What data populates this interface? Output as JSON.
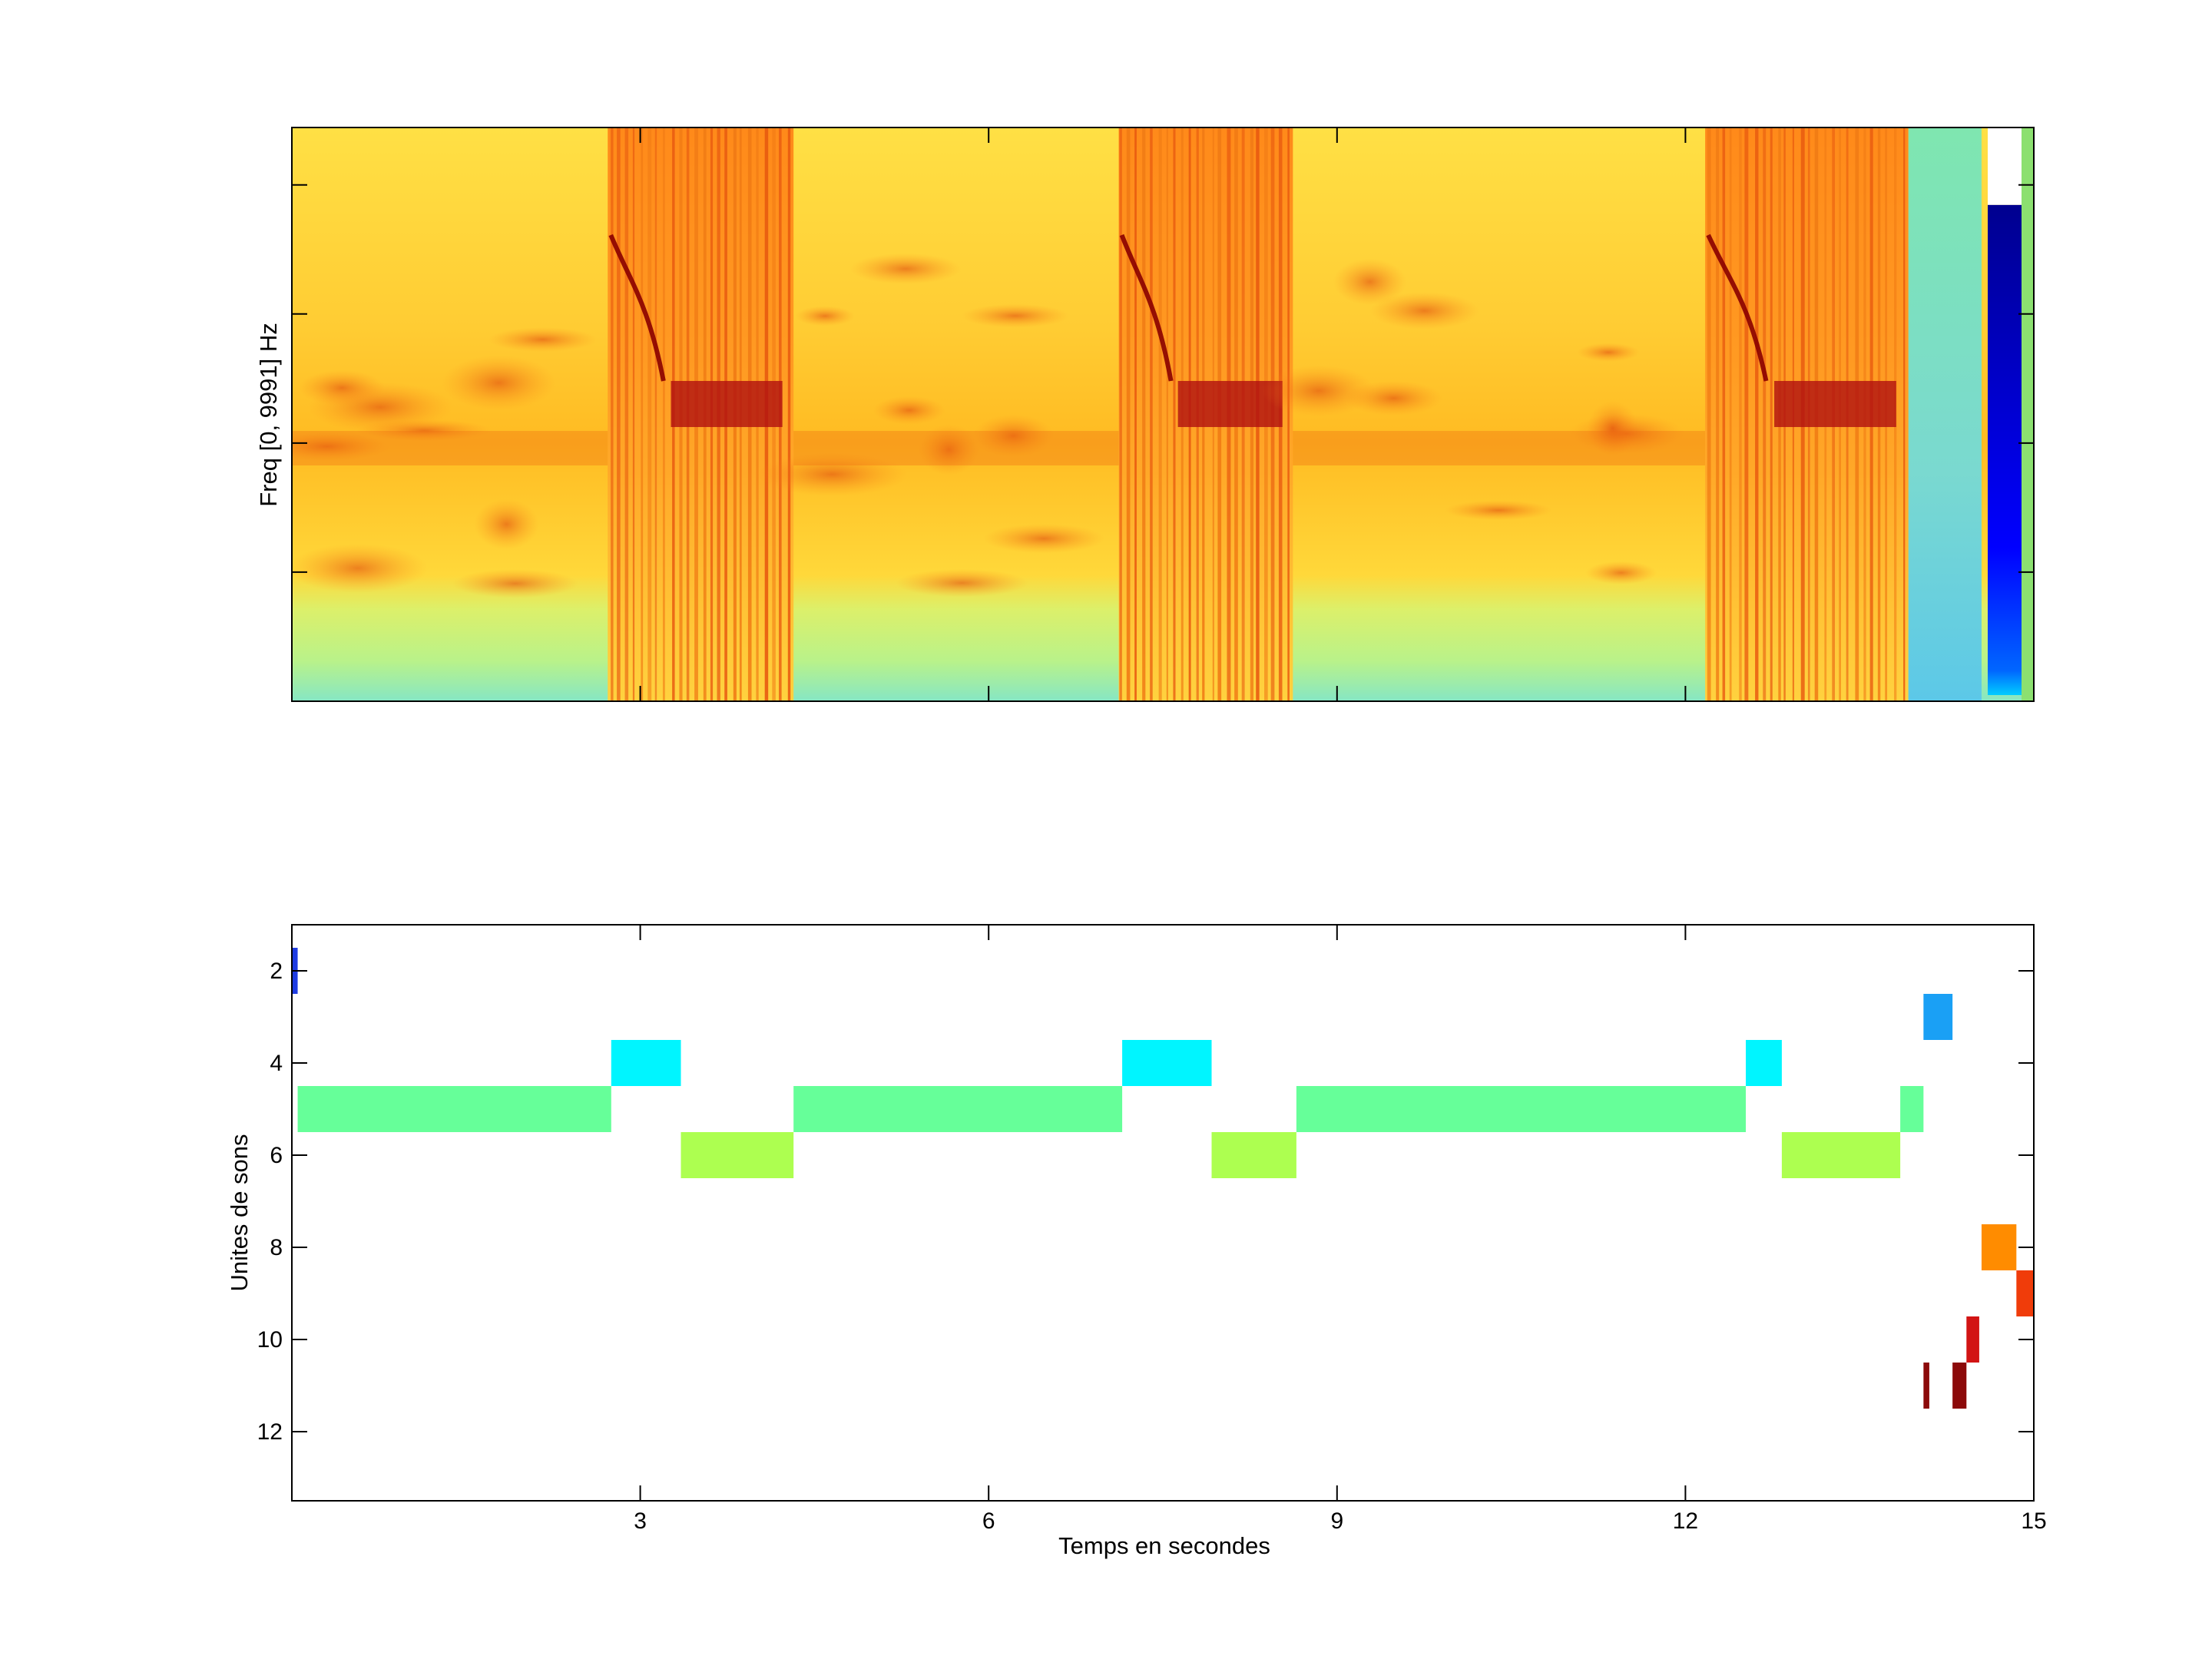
{
  "chart_data": [
    {
      "type": "heatmap",
      "ylabel": "Freq [0, 9991] Hz",
      "xlim": [
        0,
        15
      ],
      "colorscale": "jet",
      "sections": [
        {
          "t0": 0.0,
          "t1": 2.72,
          "kind": "quiet"
        },
        {
          "t0": 2.72,
          "t1": 4.32,
          "kind": "song"
        },
        {
          "t0": 4.32,
          "t1": 7.12,
          "kind": "quiet"
        },
        {
          "t0": 7.12,
          "t1": 8.62,
          "kind": "song"
        },
        {
          "t0": 8.62,
          "t1": 12.17,
          "kind": "quiet"
        },
        {
          "t0": 12.17,
          "t1": 13.92,
          "kind": "song"
        },
        {
          "t0": 13.92,
          "t1": 14.55,
          "kind": "fade"
        }
      ],
      "colorbar_fraction": 0.82
    },
    {
      "type": "heatmap",
      "xlabel": "Temps en secondes",
      "ylabel": "Unites de sons",
      "xlim": [
        0,
        15
      ],
      "ylim": [
        1,
        13.5
      ],
      "xticks": [
        3,
        6,
        9,
        12,
        15
      ],
      "yticks": [
        2,
        4,
        6,
        8,
        10,
        12
      ],
      "segments": [
        {
          "unit": 2,
          "start": 0.0,
          "end": 0.05,
          "color": "#1f3de3"
        },
        {
          "unit": 3,
          "start": 14.05,
          "end": 14.3,
          "color": "#1aa0f5"
        },
        {
          "unit": 4,
          "start": 2.75,
          "end": 3.35,
          "color": "#00f5ff"
        },
        {
          "unit": 4,
          "start": 7.15,
          "end": 7.92,
          "color": "#00f5ff"
        },
        {
          "unit": 4,
          "start": 12.52,
          "end": 12.83,
          "color": "#00f5ff"
        },
        {
          "unit": 5,
          "start": 0.05,
          "end": 2.75,
          "color": "#66ff99"
        },
        {
          "unit": 5,
          "start": 4.32,
          "end": 7.15,
          "color": "#66ff99"
        },
        {
          "unit": 5,
          "start": 8.65,
          "end": 12.52,
          "color": "#66ff99"
        },
        {
          "unit": 5,
          "start": 13.85,
          "end": 14.05,
          "color": "#66ff99"
        },
        {
          "unit": 6,
          "start": 3.35,
          "end": 4.32,
          "color": "#adff50"
        },
        {
          "unit": 6,
          "start": 7.92,
          "end": 8.65,
          "color": "#adff50"
        },
        {
          "unit": 6,
          "start": 12.83,
          "end": 13.85,
          "color": "#adff50"
        },
        {
          "unit": 8,
          "start": 14.55,
          "end": 14.85,
          "color": "#ff8c00"
        },
        {
          "unit": 9,
          "start": 14.85,
          "end": 15.0,
          "color": "#f03c0a"
        },
        {
          "unit": 10,
          "start": 14.42,
          "end": 14.53,
          "color": "#d21414"
        },
        {
          "unit": 11,
          "start": 14.05,
          "end": 14.1,
          "color": "#8c0a0a"
        },
        {
          "unit": 11,
          "start": 14.3,
          "end": 14.42,
          "color": "#8c0a0a"
        }
      ]
    }
  ]
}
